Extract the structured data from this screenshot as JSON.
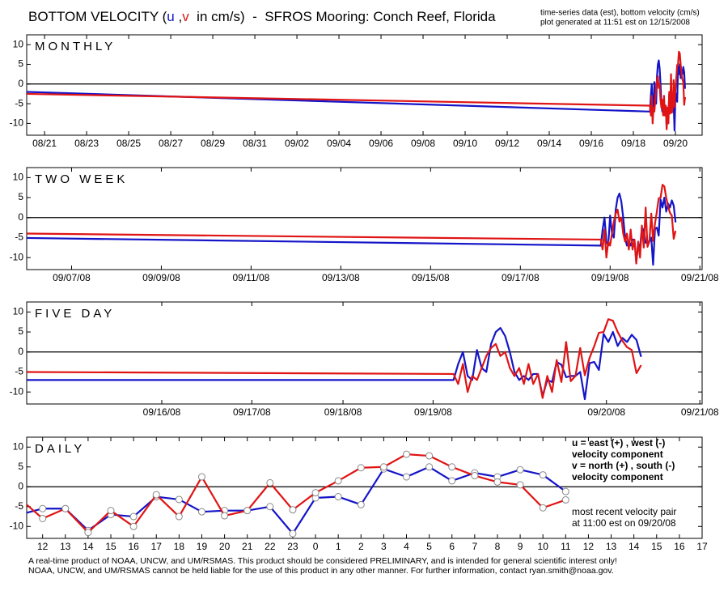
{
  "header": {
    "title_parts": [
      "BOTTOM VELOCITY (",
      "u",
      " ,",
      "v",
      "  in cm/s)  -  SFROS Mooring: Conch Reef, Florida"
    ],
    "info": [
      "time-series data (est), bottom velocity (cm/s)",
      "plot generated at 11:51 est on 12/15/2008"
    ]
  },
  "chart_data": [
    {
      "type": "line",
      "label": "MONTHLY",
      "zero_line": true,
      "x": [
        20.15,
        49.792,
        49.833,
        49.875,
        49.917,
        49.958,
        50.0,
        50.042,
        50.083,
        50.125,
        50.167,
        50.208,
        50.25,
        50.292,
        50.333,
        50.375,
        50.417,
        50.458,
        50.5,
        50.542,
        50.583,
        50.625,
        50.667,
        50.708,
        50.75,
        50.792,
        50.833,
        50.875,
        50.917,
        50.958,
        51.0,
        51.042,
        51.083,
        51.125,
        51.167,
        51.208,
        51.25,
        51.292,
        51.333,
        51.375,
        51.417,
        51.458
      ],
      "series": [
        {
          "color": "#1414c8",
          "values": [
            -2,
            -7,
            -3,
            0,
            -6,
            -7,
            0.5,
            -4,
            -5,
            2,
            5,
            6,
            4,
            0,
            -5,
            -7,
            -6,
            -7,
            -5.5,
            -5.5,
            -11,
            -7,
            -7.5,
            -2.5,
            -3.2,
            -6.3,
            -6,
            -6,
            -5,
            -11.8,
            -2.8,
            -2.5,
            -4.5,
            4.5,
            2.5,
            5,
            1.5,
            3.5,
            2.5,
            4.3,
            3,
            -1.2
          ]
        },
        {
          "color": "#e01414",
          "values": [
            -2.5,
            -5.5,
            -8,
            -3,
            -10,
            -6,
            -7,
            -4,
            -1,
            1,
            2,
            -1,
            0,
            -4,
            -6,
            -4,
            -8,
            -3,
            -8,
            -5.5,
            -11.5,
            -6,
            -10,
            -2,
            -7.5,
            2.5,
            -7.3,
            -6,
            1,
            -5.8,
            -1.5,
            1.5,
            4.8,
            5,
            8.2,
            7.8,
            5,
            2.8,
            1.2,
            0.5,
            -5.3,
            -3.3
          ]
        }
      ],
      "xlim": [
        20.15,
        52.27
      ],
      "xticks": [
        {
          "value": 21,
          "label": "08/21"
        },
        {
          "value": 23,
          "label": "08/23"
        },
        {
          "value": 25,
          "label": "08/25"
        },
        {
          "value": 27,
          "label": "08/27"
        },
        {
          "value": 29,
          "label": "08/29"
        },
        {
          "value": 31,
          "label": "08/31"
        },
        {
          "value": 33,
          "label": "09/02"
        },
        {
          "value": 35,
          "label": "09/04"
        },
        {
          "value": 37,
          "label": "09/06"
        },
        {
          "value": 39,
          "label": "09/08"
        },
        {
          "value": 41,
          "label": "09/10"
        },
        {
          "value": 43,
          "label": "09/12"
        },
        {
          "value": 45,
          "label": "09/14"
        },
        {
          "value": 47,
          "label": "09/16"
        },
        {
          "value": 49,
          "label": "09/18"
        },
        {
          "value": 51,
          "label": "09/20"
        }
      ],
      "ylim": [
        -13,
        12.5
      ],
      "yticks": [
        -10,
        -5,
        0,
        5,
        10
      ]
    },
    {
      "type": "line",
      "label": "TWO WEEK",
      "zero_line": true,
      "x": [
        6.0,
        18.792,
        18.833,
        18.875,
        18.917,
        18.958,
        19.0,
        19.042,
        19.083,
        19.125,
        19.167,
        19.208,
        19.25,
        19.292,
        19.333,
        19.375,
        19.417,
        19.458,
        19.5,
        19.542,
        19.583,
        19.625,
        19.667,
        19.708,
        19.75,
        19.792,
        19.833,
        19.875,
        19.917,
        19.958,
        20.0,
        20.042,
        20.083,
        20.125,
        20.167,
        20.208,
        20.25,
        20.292,
        20.333,
        20.375,
        20.417,
        20.458
      ],
      "series": [
        {
          "color": "#1414c8",
          "values": [
            -5.1,
            -7,
            -3,
            0,
            -6,
            -7,
            0.5,
            -4,
            -5,
            2,
            5,
            6,
            4,
            0,
            -5,
            -7,
            -6,
            -7,
            -5.5,
            -5.5,
            -11,
            -7,
            -7.5,
            -2.5,
            -3.2,
            -6.3,
            -6,
            -6,
            -5,
            -11.8,
            -2.8,
            -2.5,
            -4.5,
            4.5,
            2.5,
            5,
            1.5,
            3.5,
            2.5,
            4.3,
            3,
            -1.2
          ]
        },
        {
          "color": "#e01414",
          "values": [
            -4,
            -5.5,
            -8,
            -3,
            -10,
            -6,
            -7,
            -4,
            -1,
            1,
            2,
            -1,
            0,
            -4,
            -6,
            -4,
            -8,
            -3,
            -8,
            -5.5,
            -11.5,
            -6,
            -10,
            -2,
            -7.5,
            2.5,
            -7.3,
            -6,
            1,
            -5.8,
            -1.5,
            1.5,
            4.8,
            5,
            8.2,
            7.8,
            5,
            2.8,
            1.2,
            0.5,
            -5.3,
            -3.3
          ]
        }
      ],
      "xlim": [
        6.0,
        21.05
      ],
      "xticks": [
        {
          "value": 7,
          "label": "09/07/08"
        },
        {
          "value": 9,
          "label": "09/09/08"
        },
        {
          "value": 11,
          "label": "09/11/08"
        },
        {
          "value": 13,
          "label": "09/13/08"
        },
        {
          "value": 15,
          "label": "09/15/08"
        },
        {
          "value": 17,
          "label": "09/17/08"
        },
        {
          "value": 19,
          "label": "09/19/08"
        },
        {
          "value": 21,
          "label": "09/21/08"
        }
      ],
      "ylim": [
        -13,
        12.5
      ],
      "yticks": [
        -10,
        -5,
        0,
        5,
        10
      ]
    },
    {
      "type": "line",
      "label": "FIVE DAY",
      "zero_line": true,
      "x": [
        15.0,
        18.792,
        18.833,
        18.875,
        18.917,
        18.958,
        19.0,
        19.042,
        19.083,
        19.125,
        19.167,
        19.208,
        19.25,
        19.292,
        19.333,
        19.375,
        19.417,
        19.458,
        19.5,
        19.542,
        19.583,
        19.625,
        19.667,
        19.708,
        19.75,
        19.792,
        19.833,
        19.875,
        19.917,
        19.958,
        20.0,
        20.042,
        20.083,
        20.125,
        20.167,
        20.208,
        20.25,
        20.292,
        20.333,
        20.375,
        20.417,
        20.458
      ],
      "series": [
        {
          "color": "#1414c8",
          "values": [
            -7,
            -7,
            -3,
            0,
            -6,
            -7,
            0.5,
            -4,
            -5,
            2,
            5,
            6,
            4,
            0,
            -5,
            -7,
            -6,
            -7,
            -5.5,
            -5.5,
            -11,
            -7,
            -7.5,
            -2.5,
            -3.2,
            -6.3,
            -6,
            -6,
            -5,
            -11.8,
            -2.8,
            -2.5,
            -4.5,
            4.5,
            2.5,
            5,
            1.5,
            3.5,
            2.5,
            4.3,
            3,
            -1.2
          ]
        },
        {
          "color": "#e01414",
          "values": [
            -5,
            -5.5,
            -8,
            -3,
            -10,
            -6,
            -7,
            -4,
            -1,
            1,
            2,
            -1,
            0,
            -4,
            -6,
            -4,
            -8,
            -3,
            -8,
            -5.5,
            -11.5,
            -6,
            -10,
            -2,
            -7.5,
            2.5,
            -7.3,
            -6,
            1,
            -5.8,
            -1.5,
            1.5,
            4.8,
            5,
            8.2,
            7.8,
            5,
            2.8,
            1.2,
            0.5,
            -5.3,
            -3.3
          ]
        }
      ],
      "xlim": [
        15.0,
        21.0
      ],
      "xticks": [
        {
          "value": 16.2,
          "label": "09/16/08"
        },
        {
          "value": 17.0,
          "label": "09/17/08"
        },
        {
          "value": 17.81,
          "label": "09/18/08"
        },
        {
          "value": 18.61,
          "label": "09/19/08"
        },
        {
          "value": 20.15,
          "label": "09/20/08"
        },
        {
          "value": 20.98,
          "label": "09/21/08"
        }
      ],
      "ylim": [
        -13,
        12.5
      ],
      "yticks": [
        -10,
        -5,
        0,
        5,
        10
      ]
    },
    {
      "type": "line",
      "label": "DAILY",
      "zero_line": true,
      "markers": true,
      "x": [
        11,
        12,
        13,
        14,
        15,
        16,
        17,
        18,
        19,
        20,
        21,
        22,
        23,
        24,
        25,
        26,
        27,
        28,
        29,
        30,
        31,
        32,
        33,
        34,
        35
      ],
      "series": [
        {
          "name": "u = east (+) , west (-)",
          "description": "velocity component",
          "color": "#1414c8",
          "values": [
            -7,
            -5.5,
            -5.5,
            -11,
            -7,
            -7.5,
            -2.5,
            -3.2,
            -6.3,
            -6,
            -6,
            -5,
            -11.8,
            -2.8,
            -2.5,
            -4.5,
            4.5,
            2.5,
            5,
            1.5,
            3.5,
            2.5,
            4.3,
            3,
            -1.2
          ]
        },
        {
          "name": "v = north (+) , south (-)",
          "description": "velocity component",
          "color": "#e01414",
          "values": [
            -3,
            -8,
            -5.5,
            -11.5,
            -6,
            -10,
            -2,
            -7.5,
            2.5,
            -7.3,
            -6,
            1,
            -5.8,
            -1.5,
            1.5,
            4.8,
            5,
            8.2,
            7.8,
            5,
            2.8,
            1.2,
            0.5,
            -5.3,
            -3.3
          ]
        }
      ],
      "annotation": [
        "most recent velocity pair",
        "at 11:00 est on 09/20/08"
      ],
      "xlim": [
        11.3,
        41
      ],
      "xticks": [
        12,
        13,
        14,
        15,
        16,
        17,
        18,
        19,
        20,
        21,
        22,
        23,
        {
          "value": 24,
          "label": "0"
        },
        {
          "value": 25,
          "label": "1"
        },
        {
          "value": 26,
          "label": "2"
        },
        {
          "value": 27,
          "label": "3"
        },
        {
          "value": 28,
          "label": "4"
        },
        {
          "value": 29,
          "label": "5"
        },
        {
          "value": 30,
          "label": "6"
        },
        {
          "value": 31,
          "label": "7"
        },
        {
          "value": 32,
          "label": "8"
        },
        {
          "value": 33,
          "label": "9"
        },
        {
          "value": 34,
          "label": "10"
        },
        {
          "value": 35,
          "label": "11"
        },
        {
          "value": 36,
          "label": "12"
        },
        {
          "value": 37,
          "label": "13"
        },
        {
          "value": 38,
          "label": "14"
        },
        {
          "value": 39,
          "label": "15"
        },
        {
          "value": 40,
          "label": "16"
        },
        {
          "value": 41,
          "label": "17"
        }
      ],
      "ylim": [
        -13,
        12.5
      ],
      "yticks": [
        -10,
        -5,
        0,
        5,
        10
      ]
    }
  ],
  "footer": [
    "A real-time product of NOAA, UNCW, and UM/RSMAS. This product should be considered PRELIMINARY, and is intended for general scientific interest only!",
    "NOAA, UNCW, and UM/RSMAS cannot be held liable for the use of this product in any other manner.  For further information, contact ryan.smith@noaa.gov."
  ]
}
